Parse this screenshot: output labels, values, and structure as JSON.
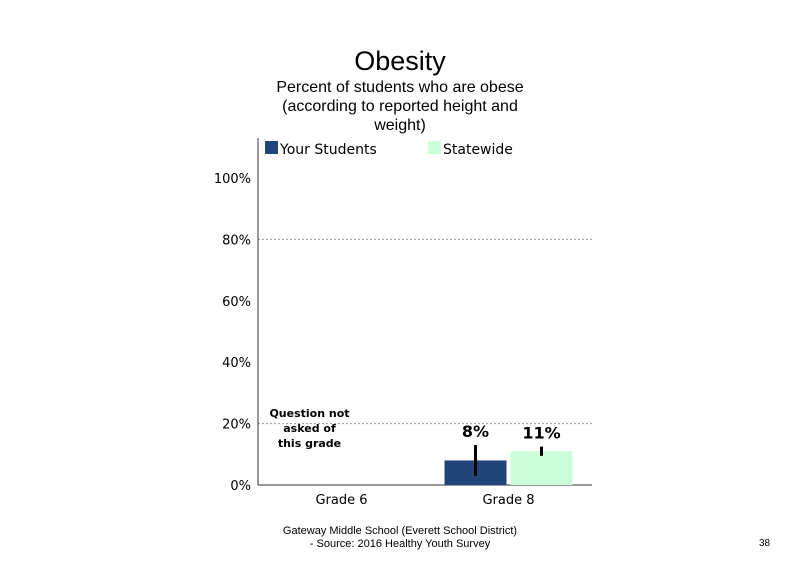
{
  "footer": {
    "line1": "Gateway Middle School (Everett School District)",
    "line2": "- Source: 2016 Healthy Youth Survey",
    "page_number": "38"
  },
  "chart_data": {
    "type": "bar",
    "title": "Obesity",
    "subtitle_lines": [
      "Percent of students who are obese",
      "(according to reported height and",
      "weight)"
    ],
    "categories": [
      "Grade 6",
      "Grade 8"
    ],
    "series": [
      {
        "name": "Your Students",
        "color": "#1f4579",
        "values": [
          null,
          8
        ],
        "labels": [
          "",
          "8%"
        ],
        "error": [
          null,
          [
            3,
            13
          ]
        ]
      },
      {
        "name": "Statewide",
        "color": "#ccffd9",
        "values": [
          null,
          11
        ],
        "labels": [
          "",
          "11%"
        ],
        "error": [
          null,
          [
            9.5,
            12.5
          ]
        ]
      }
    ],
    "yticks": [
      "0%",
      "20%",
      "40%",
      "60%",
      "80%",
      "100%"
    ],
    "ylim": [
      0,
      100
    ],
    "gridlines": [
      20,
      80
    ],
    "legend_position": "top",
    "annotation": {
      "category": "Grade 6",
      "lines": [
        "Question not",
        "asked of",
        "this grade"
      ]
    }
  }
}
